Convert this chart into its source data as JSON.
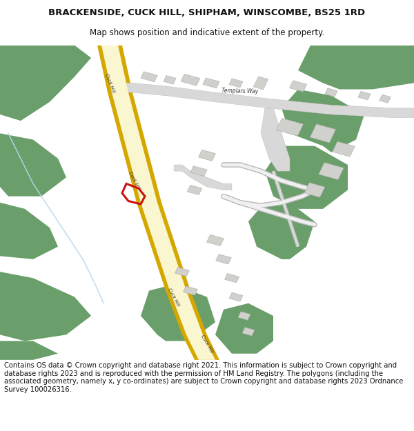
{
  "title": "BRACKENSIDE, CUCK HILL, SHIPHAM, WINSCOMBE, BS25 1RD",
  "subtitle": "Map shows position and indicative extent of the property.",
  "footer": "Contains OS data © Crown copyright and database right 2021. This information is subject to Crown copyright and database rights 2023 and is reproduced with the permission of HM Land Registry. The polygons (including the associated geometry, namely x, y co-ordinates) are subject to Crown copyright and database rights 2023 Ordnance Survey 100026316.",
  "bg_color": "#ffffff",
  "map_bg": "#f0f0eb",
  "road_cream": "#faf6d0",
  "road_yellow": "#d4a800",
  "road_gray": "#d8d8d8",
  "road_gray_border": "#b8b8b8",
  "green_color": "#6a9e6a",
  "building_color": "#d0d0cc",
  "building_border": "#aaaaaa",
  "red_plot": "#cc1111",
  "water_color": "#b8d8f0",
  "text_color": "#333333",
  "title_fontsize": 9.5,
  "subtitle_fontsize": 8.5,
  "footer_fontsize": 7.2
}
